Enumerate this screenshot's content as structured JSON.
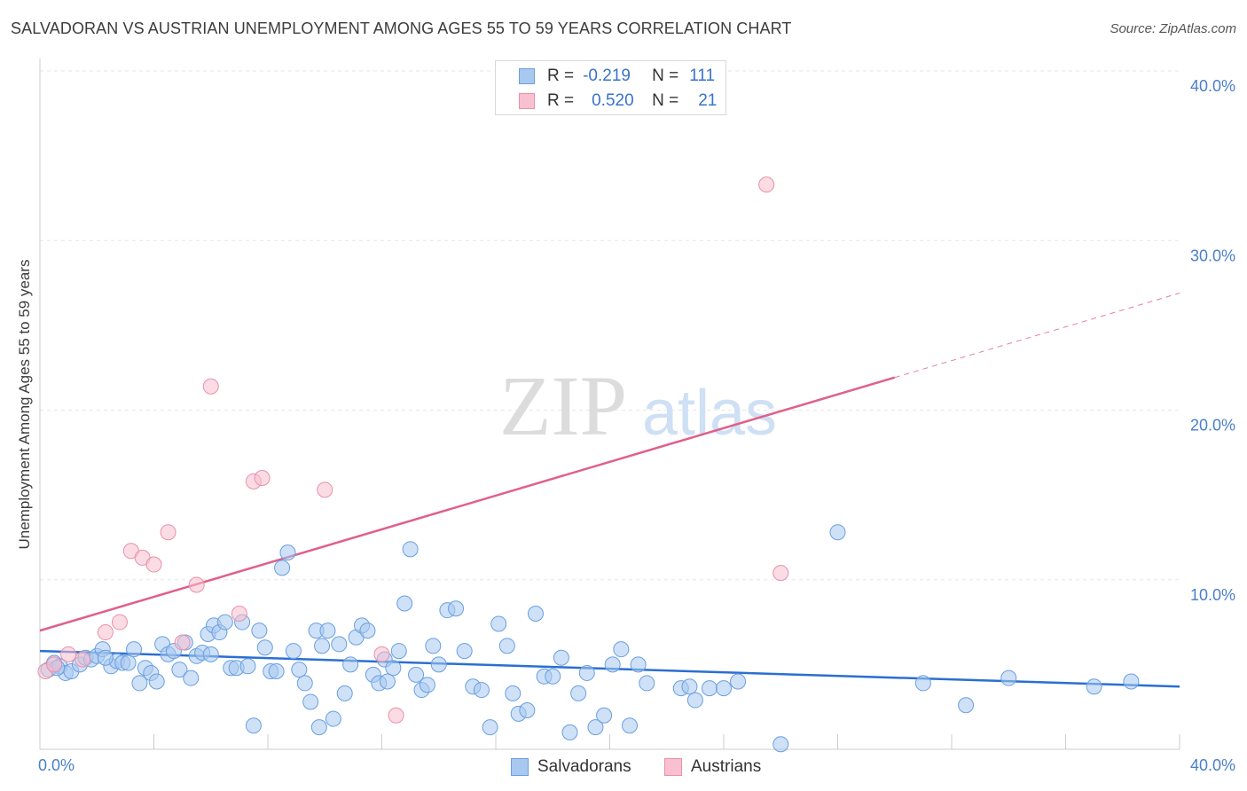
{
  "title": "SALVADORAN VS AUSTRIAN UNEMPLOYMENT AMONG AGES 55 TO 59 YEARS CORRELATION CHART",
  "source": "Source: ZipAtlas.com",
  "watermark": {
    "zip": "ZIP",
    "atlas": "atlas"
  },
  "legend": {
    "rows": [
      {
        "r_label": "R =",
        "r_value": "-0.219",
        "n_label": "N =",
        "n_value": "111",
        "color": "#a8c8f0",
        "border": "#6a9fe0"
      },
      {
        "r_label": "R =",
        "r_value": "0.520",
        "n_label": "N =",
        "n_value": "21",
        "color": "#f8c0d0",
        "border": "#e890aa"
      }
    ]
  },
  "bottom_legend": [
    {
      "label": "Salvadorans",
      "color": "#a8c8f0",
      "border": "#6a9fe0"
    },
    {
      "label": "Austrians",
      "color": "#f8c0d0",
      "border": "#e890aa"
    }
  ],
  "chart_data": {
    "type": "scatter",
    "title": "SALVADORAN VS AUSTRIAN UNEMPLOYMENT AMONG AGES 55 TO 59 YEARS CORRELATION CHART",
    "xlabel": "",
    "ylabel": "Unemployment Among Ages 55 to 59 years",
    "xlim": [
      0,
      40
    ],
    "ylim": [
      0,
      40
    ],
    "x_tick_labels": [
      "0.0%",
      "40.0%"
    ],
    "y_ticks": [
      10,
      20,
      30,
      40
    ],
    "y_tick_labels": [
      "10.0%",
      "20.0%",
      "30.0%",
      "40.0%"
    ],
    "grid": true,
    "series": [
      {
        "name": "Salvadorans",
        "color": "#6a9fe0",
        "fill": "#a8c8f0",
        "trend": {
          "x0": 0,
          "y0": 5.8,
          "x1": 40,
          "y1": 3.7,
          "dashed_from": null
        },
        "points": [
          [
            0.3,
            4.7
          ],
          [
            0.5,
            5.1
          ],
          [
            0.7,
            4.9
          ],
          [
            0.9,
            4.5
          ],
          [
            1.1,
            4.6
          ],
          [
            1.4,
            5.0
          ],
          [
            1.6,
            5.4
          ],
          [
            1.8,
            5.3
          ],
          [
            2.0,
            5.5
          ],
          [
            2.2,
            5.9
          ],
          [
            2.5,
            4.9
          ],
          [
            2.7,
            5.2
          ],
          [
            2.9,
            5.1
          ],
          [
            3.1,
            5.1
          ],
          [
            3.3,
            5.9
          ],
          [
            3.5,
            3.9
          ],
          [
            3.7,
            4.8
          ],
          [
            3.9,
            4.5
          ],
          [
            4.1,
            4.0
          ],
          [
            4.3,
            6.2
          ],
          [
            4.5,
            5.6
          ],
          [
            4.7,
            5.8
          ],
          [
            4.9,
            4.7
          ],
          [
            5.1,
            6.3
          ],
          [
            5.3,
            4.2
          ],
          [
            5.5,
            5.5
          ],
          [
            5.7,
            5.7
          ],
          [
            5.9,
            6.8
          ],
          [
            6.1,
            7.3
          ],
          [
            6.3,
            6.9
          ],
          [
            6.5,
            7.5
          ],
          [
            6.7,
            4.8
          ],
          [
            6.9,
            4.8
          ],
          [
            7.1,
            7.5
          ],
          [
            7.3,
            4.9
          ],
          [
            7.5,
            1.4
          ],
          [
            7.7,
            7.0
          ],
          [
            7.9,
            6.0
          ],
          [
            8.1,
            4.6
          ],
          [
            8.3,
            4.6
          ],
          [
            8.5,
            10.7
          ],
          [
            8.7,
            11.6
          ],
          [
            8.9,
            5.8
          ],
          [
            9.1,
            4.7
          ],
          [
            9.3,
            3.9
          ],
          [
            9.5,
            2.8
          ],
          [
            9.7,
            7.0
          ],
          [
            9.9,
            6.1
          ],
          [
            10.1,
            7.0
          ],
          [
            10.3,
            1.8
          ],
          [
            10.5,
            6.2
          ],
          [
            10.7,
            3.3
          ],
          [
            10.9,
            5.0
          ],
          [
            11.1,
            6.6
          ],
          [
            11.3,
            7.3
          ],
          [
            11.5,
            7.0
          ],
          [
            11.7,
            4.4
          ],
          [
            11.9,
            3.9
          ],
          [
            12.1,
            5.3
          ],
          [
            12.4,
            4.8
          ],
          [
            12.6,
            5.8
          ],
          [
            12.8,
            8.6
          ],
          [
            13.0,
            11.8
          ],
          [
            13.2,
            4.4
          ],
          [
            13.4,
            3.5
          ],
          [
            13.6,
            3.8
          ],
          [
            13.8,
            6.1
          ],
          [
            14.0,
            5.0
          ],
          [
            14.3,
            8.2
          ],
          [
            14.6,
            8.3
          ],
          [
            14.9,
            5.8
          ],
          [
            15.2,
            3.7
          ],
          [
            15.5,
            3.5
          ],
          [
            15.8,
            1.3
          ],
          [
            16.1,
            7.4
          ],
          [
            16.4,
            6.1
          ],
          [
            16.8,
            2.1
          ],
          [
            17.1,
            2.3
          ],
          [
            17.4,
            8.0
          ],
          [
            17.7,
            4.3
          ],
          [
            18.0,
            4.3
          ],
          [
            18.3,
            5.4
          ],
          [
            18.6,
            1.0
          ],
          [
            18.9,
            3.3
          ],
          [
            19.2,
            4.5
          ],
          [
            19.5,
            1.3
          ],
          [
            19.8,
            2.0
          ],
          [
            20.1,
            5.0
          ],
          [
            20.4,
            5.9
          ],
          [
            20.7,
            1.4
          ],
          [
            21.0,
            5.0
          ],
          [
            21.3,
            3.9
          ],
          [
            22.5,
            3.6
          ],
          [
            23.0,
            2.9
          ],
          [
            23.5,
            3.6
          ],
          [
            24.0,
            3.6
          ],
          [
            24.5,
            4.0
          ],
          [
            26.0,
            0.3
          ],
          [
            28.0,
            12.8
          ],
          [
            31.0,
            3.9
          ],
          [
            32.5,
            2.6
          ],
          [
            34.0,
            4.2
          ],
          [
            37.0,
            3.7
          ],
          [
            38.3,
            4.0
          ],
          [
            2.3,
            5.4
          ],
          [
            6.0,
            5.6
          ],
          [
            9.8,
            1.3
          ],
          [
            12.2,
            4.0
          ],
          [
            16.6,
            3.3
          ],
          [
            22.8,
            3.7
          ],
          [
            0.6,
            4.8
          ]
        ]
      },
      {
        "name": "Austrians",
        "color": "#e890aa",
        "fill": "#f8c0d0",
        "trend": {
          "x0": 0,
          "y0": 7.0,
          "x1": 40,
          "y1": 26.9,
          "dashed_from": 30
        },
        "points": [
          [
            0.2,
            4.6
          ],
          [
            0.5,
            5.0
          ],
          [
            1.0,
            5.6
          ],
          [
            1.5,
            5.3
          ],
          [
            2.3,
            6.9
          ],
          [
            2.8,
            7.5
          ],
          [
            3.2,
            11.7
          ],
          [
            3.6,
            11.3
          ],
          [
            4.0,
            10.9
          ],
          [
            4.5,
            12.8
          ],
          [
            5.0,
            6.3
          ],
          [
            5.5,
            9.7
          ],
          [
            6.0,
            21.4
          ],
          [
            7.0,
            8.0
          ],
          [
            7.5,
            15.8
          ],
          [
            7.8,
            16.0
          ],
          [
            10.0,
            15.3
          ],
          [
            12.0,
            5.6
          ],
          [
            12.5,
            2.0
          ],
          [
            25.5,
            33.3
          ],
          [
            26.0,
            10.4
          ]
        ]
      }
    ]
  }
}
